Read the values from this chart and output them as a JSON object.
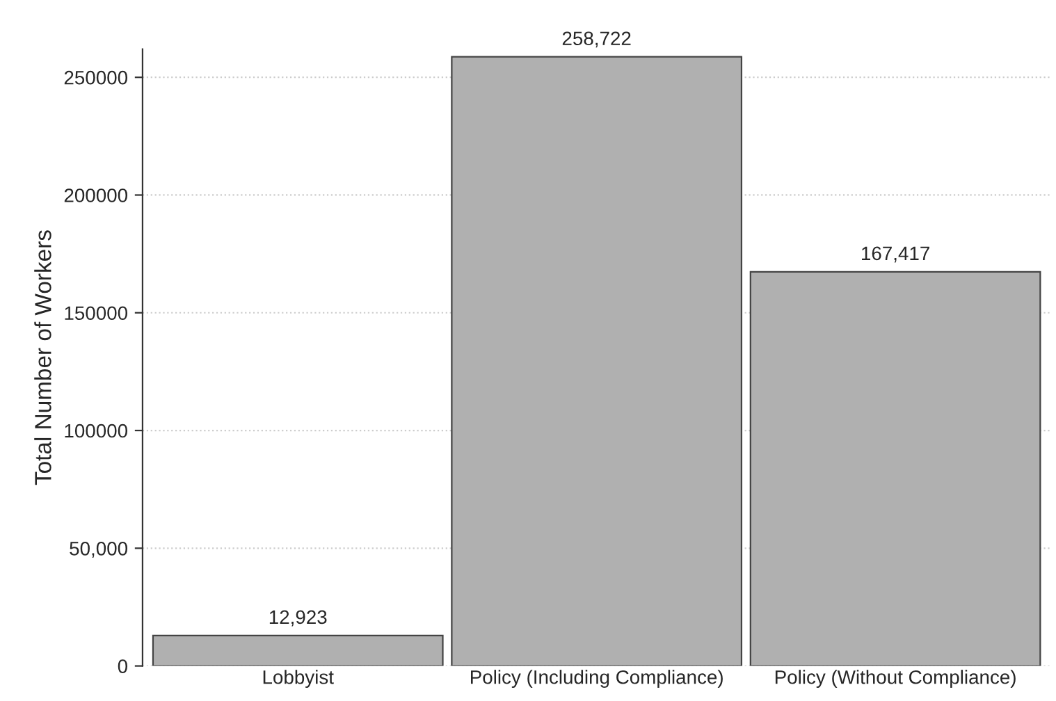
{
  "chart_data": {
    "type": "bar",
    "ylabel": "Total Number of Workers",
    "categories": [
      "Lobbyist",
      "Policy (Including Compliance)",
      "Policy (Without Compliance)"
    ],
    "values": [
      12923,
      258722,
      167417
    ],
    "color": "#b0b0b0",
    "value_labels": [
      "12,923",
      "258,722",
      "167,417"
    ],
    "ylim": [
      0,
      262000
    ],
    "yticks": [
      0,
      {
        "value": 50000,
        "label": "50,000"
      },
      100000,
      150000,
      200000,
      250000
    ],
    "grid": "y",
    "legend": false
  }
}
